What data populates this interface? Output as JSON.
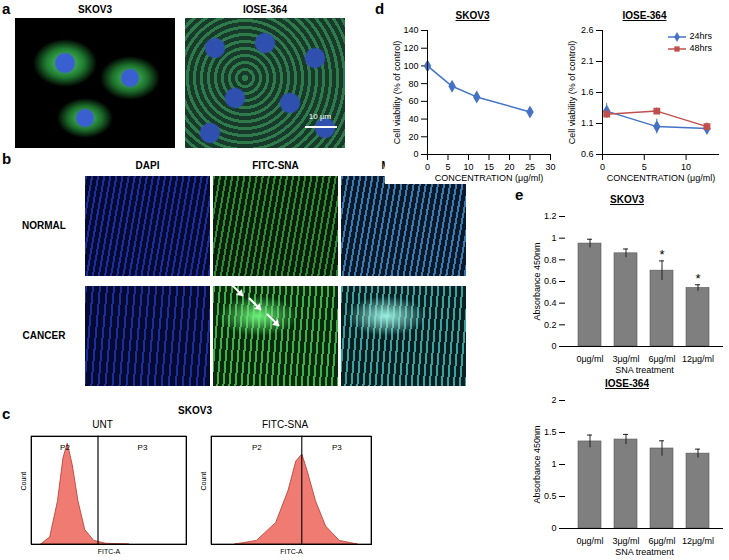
{
  "panel_a": {
    "letter": "a",
    "images": [
      {
        "label": "SKOV3"
      },
      {
        "label": "IOSE-364",
        "scale_bar": "10 μm"
      }
    ]
  },
  "panel_b": {
    "letter": "b",
    "columns": [
      "DAPI",
      "FITC-SNA",
      "MERGED"
    ],
    "rows": [
      "NORMAL",
      "CANCER"
    ]
  },
  "panel_c": {
    "letter": "c",
    "title": "SKOV3"
  },
  "panel_d": {
    "letter": "d"
  },
  "panel_e": {
    "letter": "e"
  },
  "chart_data": [
    {
      "type": "area",
      "title": "UNT",
      "x_label": "FITC-A",
      "y_label": "Count",
      "x": [
        50,
        80,
        120,
        160,
        200,
        260,
        350,
        500,
        800,
        1500,
        5000
      ],
      "values": [
        0,
        20,
        120,
        240,
        280,
        220,
        120,
        40,
        10,
        2,
        0
      ],
      "color": "#ef7b73",
      "log": "x",
      "xlim": [
        30,
        100000
      ],
      "ylim": [
        0,
        300
      ],
      "tick_labels": false,
      "gates": [
        {
          "name": "P2",
          "x1": 30,
          "x2": 1000
        },
        {
          "name": "P3",
          "x1": 1000,
          "x2": 100000
        }
      ]
    },
    {
      "type": "area",
      "title": "FITC-SNA",
      "x_label": "FITC-A",
      "y_label": "Count",
      "x": [
        100,
        300,
        800,
        1500,
        2200,
        3000,
        4000,
        6000,
        10000,
        20000,
        50000
      ],
      "values": [
        0,
        10,
        60,
        150,
        230,
        250,
        200,
        120,
        50,
        10,
        0
      ],
      "color": "#ef7b73",
      "log": "x",
      "xlim": [
        30,
        100000
      ],
      "ylim": [
        0,
        300
      ],
      "tick_labels": false,
      "gates": [
        {
          "name": "P2",
          "x1": 30,
          "x2": 3000
        },
        {
          "name": "P3",
          "x1": 3000,
          "x2": 100000
        }
      ]
    },
    {
      "type": "line",
      "title": "SKOV3",
      "x_label": "CONCENTRATION (μg/ml)",
      "y_label": "Cell viability (% of control)",
      "x": [
        0,
        6,
        12,
        25
      ],
      "series": [
        {
          "values": [
            100,
            77,
            65,
            48
          ],
          "color": "#4472c4",
          "marker": "diamond"
        }
      ],
      "xlim": [
        0,
        30
      ],
      "xticks": [
        0,
        5,
        10,
        15,
        20,
        25,
        30
      ],
      "ylim": [
        0,
        140
      ],
      "yticks": [
        0,
        20,
        40,
        60,
        80,
        100,
        120,
        140
      ],
      "grid": false
    },
    {
      "type": "line",
      "title": "IOSE-364",
      "x_label": "CONCENTRATION (μg/ml)",
      "y_label": "Cell viability (% of control)",
      "x": [
        0.5,
        6.5,
        12.5
      ],
      "series": [
        {
          "name": "24hrs",
          "values": [
            1.3,
            1.05,
            1.02
          ],
          "errors": [
            0.12,
            0.12,
            0.05
          ],
          "color": "#4472c4",
          "marker": "diamond"
        },
        {
          "name": "48hrs",
          "values": [
            1.25,
            1.3,
            1.05
          ],
          "errors": [
            0.05,
            0.05,
            0.05
          ],
          "color": "#c0504d",
          "marker": "square"
        }
      ],
      "xlim": [
        0,
        14
      ],
      "xticks": [
        0,
        5,
        10
      ],
      "ylim": [
        0.6,
        2.6
      ],
      "yticks": [
        0.6,
        1.1,
        1.6,
        2.1,
        2.6
      ],
      "grid": false,
      "legend": "top-right"
    },
    {
      "type": "bar",
      "title": "SKOV3",
      "x_label": "SNA treatment",
      "y_label": "Absorbance 450nm",
      "categories": [
        "0μg/ml",
        "3μg/ml",
        "6μg/ml",
        "12μg/ml"
      ],
      "values": [
        0.95,
        0.86,
        0.7,
        0.54
      ],
      "errors": [
        0.04,
        0.04,
        0.09,
        0.03
      ],
      "color": "#7f7f7f",
      "ylim": [
        0,
        1.2
      ],
      "yticks": [
        0,
        0.2,
        0.4,
        0.6,
        0.8,
        1,
        1.2
      ],
      "grid": false,
      "annotations": [
        {
          "category": "6μg/ml",
          "text": "*"
        },
        {
          "category": "12μg/ml",
          "text": "*"
        }
      ]
    },
    {
      "type": "bar",
      "title": "IOSE-364",
      "x_label": "SNA treatment",
      "y_label": "Absorbance 450nm",
      "categories": [
        "0μg/ml",
        "3μg/ml",
        "6μg/ml",
        "12μg/ml"
      ],
      "values": [
        1.36,
        1.39,
        1.25,
        1.17
      ],
      "errors": [
        0.1,
        0.08,
        0.12,
        0.07
      ],
      "color": "#7f7f7f",
      "ylim": [
        0,
        2
      ],
      "yticks": [
        0,
        0.5,
        1,
        1.5,
        2
      ],
      "grid": false
    }
  ]
}
